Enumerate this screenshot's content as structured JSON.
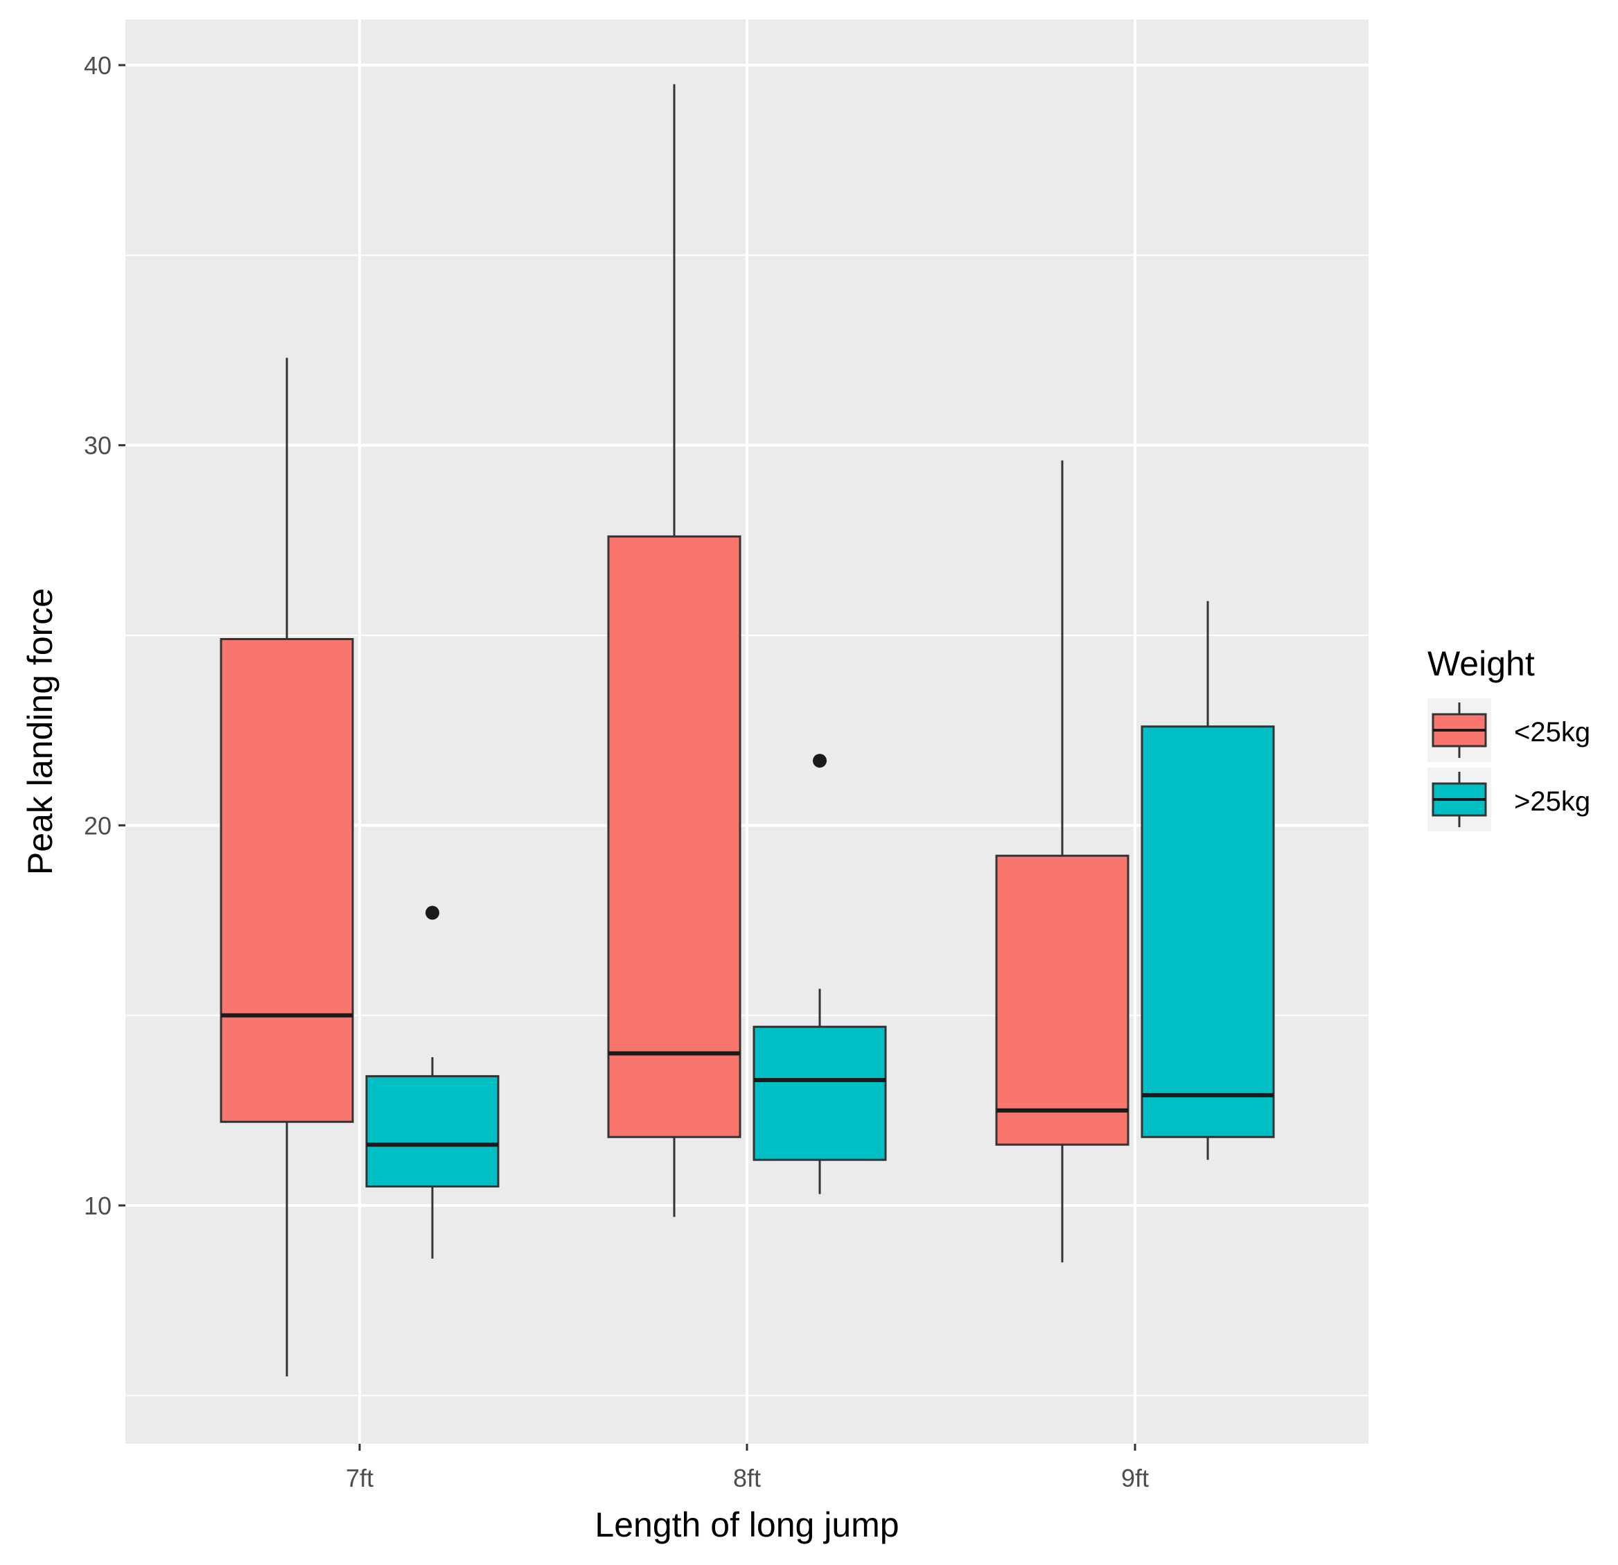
{
  "chart_data": {
    "type": "boxplot",
    "xlabel": "Length of long jump",
    "ylabel": "Peak landing force",
    "categories": [
      "7ft",
      "8ft",
      "9ft"
    ],
    "yticks": [
      10,
      20,
      30,
      40
    ],
    "ylim": [
      4.3,
      41.3
    ],
    "grid": true,
    "legend": {
      "title": "Weight",
      "position": "right",
      "entries": [
        "<25kg",
        ">25kg"
      ]
    },
    "series": [
      {
        "name": "<25kg",
        "color": "#F8766D",
        "boxes": [
          {
            "category": "7ft",
            "whisker_low": 5.5,
            "q1": 12.2,
            "median": 15.0,
            "q3": 24.9,
            "whisker_high": 32.3,
            "outliers": []
          },
          {
            "category": "8ft",
            "whisker_low": 9.7,
            "q1": 11.8,
            "median": 14.0,
            "q3": 27.6,
            "whisker_high": 39.5,
            "outliers": []
          },
          {
            "category": "9ft",
            "whisker_low": 8.5,
            "q1": 11.6,
            "median": 12.5,
            "q3": 19.2,
            "whisker_high": 29.6,
            "outliers": []
          }
        ]
      },
      {
        "name": ">25kg",
        "color": "#00BFC4",
        "boxes": [
          {
            "category": "7ft",
            "whisker_low": 8.6,
            "q1": 10.5,
            "median": 11.6,
            "q3": 13.4,
            "whisker_high": 13.9,
            "outliers": [
              17.7
            ]
          },
          {
            "category": "8ft",
            "whisker_low": 10.3,
            "q1": 11.2,
            "median": 13.3,
            "q3": 14.7,
            "whisker_high": 15.7,
            "outliers": [
              21.7
            ]
          },
          {
            "category": "9ft",
            "whisker_low": 11.2,
            "q1": 11.8,
            "median": 12.9,
            "q3": 22.6,
            "whisker_high": 25.9,
            "outliers": []
          }
        ]
      }
    ]
  }
}
